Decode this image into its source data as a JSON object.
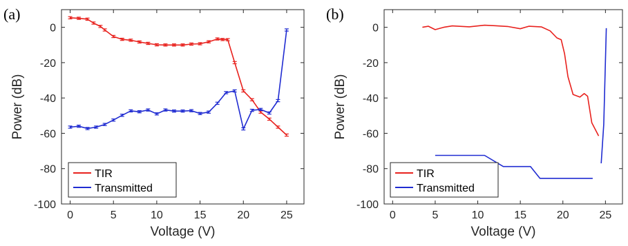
{
  "figure": {
    "panels": [
      "(a)",
      "(b)"
    ]
  },
  "chart_data": [
    {
      "panel": "(a)",
      "type": "line",
      "xlabel": "Voltage (V)",
      "ylabel": "Power (dB)",
      "xlim": [
        -1,
        27
      ],
      "ylim": [
        -100,
        10
      ],
      "xticks": [
        0,
        5,
        10,
        15,
        20,
        25
      ],
      "yticks": [
        0,
        -20,
        -40,
        -60,
        -80,
        -100
      ],
      "grid": false,
      "legend_position": "bottom-left",
      "series": [
        {
          "name": "TIR",
          "color": "#e8211d",
          "error_bars": true,
          "x": [
            0,
            1,
            2,
            2.7,
            3.5,
            4,
            5,
            6,
            7,
            8,
            9,
            10,
            11,
            12,
            13,
            14,
            15,
            16,
            17,
            17.6,
            18.2,
            19,
            20,
            21,
            22,
            23,
            24,
            25
          ],
          "y": [
            5.4,
            5.1,
            4.6,
            2.4,
            0.5,
            -1.5,
            -5.2,
            -6.8,
            -7.3,
            -8.3,
            -9.1,
            -9.9,
            -10,
            -10,
            -10,
            -9.5,
            -9.3,
            -8.2,
            -6.6,
            -6.9,
            -7,
            -20,
            -36,
            -41,
            -48,
            -52,
            -56.5,
            -61
          ]
        },
        {
          "name": "Transmitted",
          "color": "#1f2bd1",
          "error_bars": true,
          "x": [
            0,
            1,
            2,
            3,
            4,
            5,
            6,
            7,
            8,
            9,
            10,
            11,
            12,
            13,
            14,
            15,
            16,
            17,
            18,
            19,
            20,
            21,
            22,
            23,
            24,
            25
          ],
          "y": [
            -56.5,
            -56,
            -57.3,
            -56.5,
            -55,
            -52.5,
            -49.8,
            -47.3,
            -47.8,
            -46.8,
            -49,
            -46.8,
            -47.4,
            -47.4,
            -47.2,
            -48.8,
            -48,
            -43,
            -37,
            -36,
            -57.5,
            -47,
            -46.5,
            -48.5,
            -41.5,
            -1.5
          ]
        }
      ]
    },
    {
      "panel": "(b)",
      "type": "line",
      "xlabel": "Voltage (V)",
      "ylabel": "Power (dB)",
      "xlim": [
        -1,
        27
      ],
      "ylim": [
        -100,
        10
      ],
      "xticks": [
        0,
        5,
        10,
        15,
        20,
        25
      ],
      "yticks": [
        0,
        -20,
        -40,
        -60,
        -80,
        -100
      ],
      "grid": false,
      "legend_position": "bottom-left",
      "series": [
        {
          "name": "TIR",
          "color": "#e8211d",
          "error_bars": false,
          "x": [
            3.5,
            4.2,
            5,
            6,
            7,
            9,
            10.8,
            12,
            13.5,
            15,
            16,
            17.5,
            18.5,
            19.3,
            19.8,
            20.2,
            20.6,
            21.2,
            22,
            22.5,
            22.9,
            23.4,
            24.2
          ],
          "y": [
            0,
            0.6,
            -1.3,
            0,
            0.8,
            0.3,
            1.2,
            0.9,
            0.5,
            -0.8,
            0.6,
            0.2,
            -2,
            -6,
            -7,
            -15,
            -28,
            -38,
            -39.5,
            -37.5,
            -39,
            -54,
            -61.5
          ]
        },
        {
          "name": "Transmitted",
          "color": "#1f2bd1",
          "error_bars": false,
          "x": [
            5,
            10.8,
            13,
            16.2,
            17.3,
            23.5
          ],
          "y": [
            -72.5,
            -72.5,
            -78.8,
            -78.8,
            -85.5,
            -85.5
          ]
        },
        {
          "name": "",
          "color": "#1f2bd1",
          "error_bars": false,
          "x": [
            24.5,
            24.8,
            25.1
          ],
          "y": [
            -77,
            -55,
            -0.5
          ]
        }
      ]
    }
  ]
}
